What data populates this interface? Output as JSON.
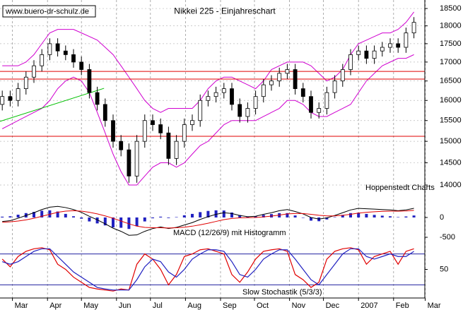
{
  "chart_data": [
    {
      "type": "candlestick",
      "title": "Nikkei 225 - Einjahreschart",
      "source": "www.buero-dr-schulz.de",
      "annotation": "Hoppenstedt Charts",
      "log": true,
      "grid": true,
      "xlim": [
        0,
        420
      ],
      "xticks": [
        {
          "value": 11,
          "label": "Mar"
        },
        {
          "value": 42,
          "label": "Apr"
        },
        {
          "value": 72,
          "label": "May"
        },
        {
          "value": 103,
          "label": "Jun"
        },
        {
          "value": 133,
          "label": "Jul"
        },
        {
          "value": 164,
          "label": "Aug"
        },
        {
          "value": 195,
          "label": "Sep"
        },
        {
          "value": 225,
          "label": "Oct"
        },
        {
          "value": 256,
          "label": "Nov"
        },
        {
          "value": 286,
          "label": "Dec"
        },
        {
          "value": 317,
          "label": "2007"
        },
        {
          "value": 348,
          "label": "Feb"
        },
        {
          "value": 376,
          "label": "Mar"
        }
      ],
      "ylim": [
        13570,
        18750
      ],
      "yticks": [
        18500,
        18000,
        17500,
        17000,
        16500,
        16000,
        15500,
        15000,
        14500,
        14000
      ],
      "x": [
        2,
        9,
        16,
        23,
        30,
        37,
        44,
        51,
        58,
        65,
        72,
        79,
        86,
        93,
        100,
        107,
        114,
        121,
        128,
        135,
        142,
        149,
        156,
        163,
        170,
        177,
        184,
        191,
        198,
        205,
        212,
        219,
        226,
        233,
        240,
        247,
        254,
        261,
        268,
        275,
        282,
        289,
        296,
        303,
        310,
        317,
        324,
        331,
        338,
        345,
        352,
        359,
        366
      ],
      "open": [
        15900,
        16100,
        16000,
        16300,
        16600,
        16900,
        17200,
        17500,
        17300,
        17200,
        17000,
        16800,
        16200,
        15900,
        15500,
        15000,
        14800,
        14200,
        15000,
        15500,
        15400,
        15200,
        14600,
        15000,
        15400,
        15500,
        16000,
        16100,
        16200,
        16300,
        15900,
        15600,
        15800,
        16100,
        16400,
        16500,
        16700,
        16800,
        16300,
        16100,
        15700,
        15800,
        16200,
        16500,
        16800,
        17200,
        17300,
        17100,
        17300,
        17400,
        17500,
        17400,
        17800
      ],
      "high": [
        16250,
        16250,
        16450,
        16750,
        17050,
        17350,
        17650,
        17650,
        17450,
        17350,
        17150,
        16950,
        16350,
        16050,
        15650,
        15150,
        14950,
        15150,
        15650,
        15650,
        15550,
        15350,
        15150,
        15550,
        15650,
        16150,
        16250,
        16350,
        16450,
        16450,
        16050,
        15950,
        16250,
        16550,
        16650,
        16850,
        16950,
        16950,
        16450,
        16250,
        15950,
        16350,
        16650,
        16950,
        17350,
        17450,
        17450,
        17450,
        17550,
        17650,
        17650,
        17950,
        18250
      ],
      "low": [
        15750,
        15850,
        15850,
        16150,
        16450,
        16750,
        17050,
        17150,
        17050,
        16850,
        16650,
        16050,
        15750,
        15350,
        14850,
        14650,
        14050,
        14050,
        14850,
        15250,
        15050,
        14450,
        14450,
        14850,
        15250,
        15350,
        15850,
        15950,
        16050,
        15750,
        15450,
        15450,
        15650,
        15950,
        16250,
        16350,
        16550,
        16150,
        15950,
        15550,
        15550,
        15650,
        16050,
        16350,
        16650,
        17050,
        16950,
        16950,
        17150,
        17250,
        17250,
        17250,
        17650
      ],
      "close": [
        16100,
        16000,
        16300,
        16600,
        16900,
        17200,
        17500,
        17300,
        17200,
        17000,
        16800,
        16200,
        15900,
        15500,
        15000,
        14800,
        14200,
        15000,
        15500,
        15400,
        15200,
        14600,
        15000,
        15400,
        15500,
        16000,
        16100,
        16200,
        16300,
        15900,
        15600,
        15800,
        16100,
        16400,
        16500,
        16700,
        16800,
        16300,
        16100,
        15700,
        15800,
        16200,
        16500,
        16800,
        17200,
        17300,
        17100,
        17300,
        17400,
        17500,
        17400,
        17800,
        18100
      ],
      "bands": [
        {
          "color": "#d000d0",
          "values": [
            16900,
            16900,
            16900,
            17000,
            17200,
            17500,
            17800,
            17900,
            17900,
            17900,
            17800,
            17700,
            17600,
            17400,
            17200,
            16900,
            16600,
            16300,
            16000,
            15800,
            15700,
            15800,
            15800,
            15800,
            15800,
            16000,
            16300,
            16500,
            16600,
            16600,
            16500,
            16400,
            16300,
            16500,
            16800,
            16900,
            17000,
            17000,
            17000,
            16900,
            16700,
            16500,
            16600,
            16800,
            17200,
            17500,
            17600,
            17700,
            17800,
            17800,
            17900,
            18100,
            18400
          ]
        },
        {
          "color": "#d000d0",
          "values": [
            15300,
            15400,
            15500,
            15600,
            15700,
            15800,
            16000,
            16300,
            16500,
            16600,
            16500,
            16200,
            15700,
            15200,
            14700,
            14300,
            14000,
            14000,
            14200,
            14400,
            14500,
            14500,
            14400,
            14500,
            14700,
            14900,
            15000,
            15200,
            15400,
            15500,
            15500,
            15500,
            15500,
            15600,
            15700,
            15800,
            16000,
            16000,
            15900,
            15700,
            15600,
            15600,
            15700,
            15800,
            15900,
            16200,
            16500,
            16700,
            16900,
            17000,
            17100,
            17100,
            17200
          ]
        }
      ],
      "hlines": {
        "color": "#e00000",
        "values": [
          16750,
          16550,
          15120
        ]
      },
      "trendline": {
        "color": "#00c000",
        "x": [
          0,
          92
        ],
        "values": [
          15480,
          16310
        ]
      }
    },
    {
      "type": "macd",
      "title": "MACD (12/26/9) mit Histogramm",
      "ylim": [
        -660,
        320
      ],
      "yticks": [
        0,
        -500
      ],
      "series": [
        {
          "color": "#000000",
          "values": [
            -100,
            -80,
            -20,
            50,
            120,
            200,
            260,
            280,
            250,
            200,
            130,
            30,
            -60,
            -160,
            -270,
            -350,
            -450,
            -440,
            -350,
            -280,
            -240,
            -280,
            -250,
            -190,
            -130,
            -50,
            20,
            80,
            120,
            100,
            50,
            20,
            30,
            80,
            120,
            170,
            200,
            150,
            90,
            0,
            -40,
            -10,
            50,
            120,
            190,
            230,
            220,
            210,
            200,
            190,
            170,
            190,
            230
          ]
        },
        {
          "color": "#e00000",
          "values": [
            -120,
            -110,
            -90,
            -60,
            -20,
            30,
            80,
            130,
            160,
            170,
            160,
            130,
            90,
            40,
            -20,
            -90,
            -160,
            -220,
            -250,
            -260,
            -260,
            -265,
            -260,
            -245,
            -220,
            -185,
            -145,
            -100,
            -55,
            -25,
            -10,
            -5,
            0,
            15,
            35,
            60,
            90,
            100,
            100,
            80,
            55,
            40,
            40,
            55,
            80,
            110,
            130,
            145,
            155,
            160,
            160,
            165,
            180
          ]
        }
      ],
      "histogram": {
        "color": "#2020c0",
        "values": [
          20,
          30,
          70,
          110,
          140,
          170,
          180,
          150,
          90,
          30,
          -30,
          -100,
          -150,
          -200,
          -250,
          -260,
          -290,
          -220,
          -100,
          -20,
          20,
          -15,
          10,
          55,
          90,
          135,
          165,
          180,
          175,
          125,
          60,
          25,
          30,
          65,
          85,
          110,
          110,
          50,
          -10,
          -80,
          -95,
          -50,
          10,
          65,
          110,
          120,
          90,
          65,
          45,
          30,
          10,
          25,
          50
        ]
      }
    },
    {
      "type": "stochastic",
      "title": "Slow Stochastik (5/3/3)",
      "ylim": [
        0,
        100
      ],
      "yticks": [
        50
      ],
      "levels": [
        80,
        20
      ],
      "level_color": "#2020a0",
      "series": [
        {
          "color": "#e00000",
          "values": [
            70,
            55,
            75,
            85,
            90,
            92,
            88,
            60,
            50,
            35,
            25,
            15,
            12,
            10,
            8,
            12,
            10,
            60,
            80,
            70,
            50,
            20,
            40,
            75,
            80,
            88,
            90,
            85,
            80,
            40,
            25,
            45,
            70,
            85,
            88,
            90,
            85,
            40,
            30,
            15,
            25,
            70,
            85,
            90,
            92,
            88,
            60,
            75,
            80,
            85,
            60,
            85,
            90
          ]
        },
        {
          "color": "#2020c0",
          "values": [
            65,
            60,
            65,
            75,
            85,
            90,
            90,
            75,
            60,
            45,
            35,
            25,
            15,
            12,
            10,
            10,
            10,
            30,
            55,
            70,
            65,
            45,
            35,
            50,
            70,
            80,
            88,
            88,
            85,
            65,
            40,
            35,
            50,
            70,
            80,
            88,
            88,
            70,
            50,
            30,
            20,
            40,
            60,
            80,
            90,
            90,
            75,
            70,
            75,
            80,
            75,
            75,
            85
          ]
        }
      ]
    }
  ]
}
